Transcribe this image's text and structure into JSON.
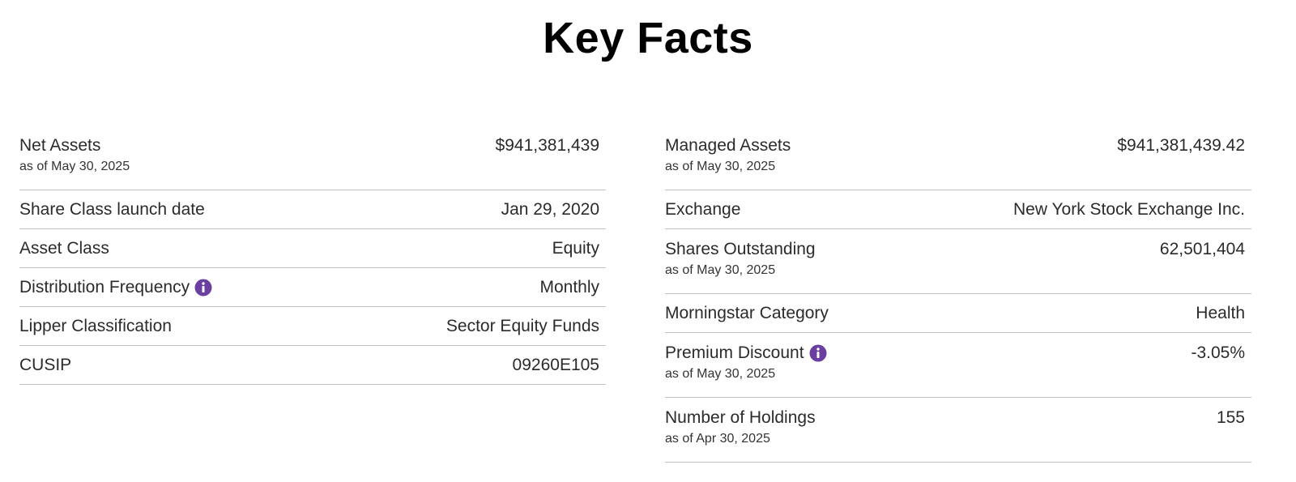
{
  "title": "Key Facts",
  "left": [
    {
      "label": "Net Assets",
      "as_of": "as of May 30, 2025",
      "value": "$941,381,439"
    },
    {
      "label": "Share Class launch date",
      "value": "Jan 29, 2020"
    },
    {
      "label": "Asset Class",
      "value": "Equity"
    },
    {
      "label": "Distribution Frequency",
      "value": "Monthly"
    },
    {
      "label": "Lipper Classification",
      "value": "Sector Equity Funds"
    },
    {
      "label": "CUSIP",
      "value": "09260E105"
    }
  ],
  "right": [
    {
      "label": "Managed Assets",
      "as_of": "as of May 30, 2025",
      "value": "$941,381,439.42"
    },
    {
      "label": "Exchange",
      "value": "New York Stock Exchange Inc."
    },
    {
      "label": "Shares Outstanding",
      "as_of": "as of May 30, 2025",
      "value": "62,501,404"
    },
    {
      "label": "Morningstar Category",
      "value": "Health"
    },
    {
      "label": "Premium Discount",
      "as_of": "as of May 30, 2025",
      "value": "-3.05%"
    },
    {
      "label": "Number of Holdings",
      "as_of": "as of Apr 30, 2025",
      "value": "155"
    }
  ]
}
